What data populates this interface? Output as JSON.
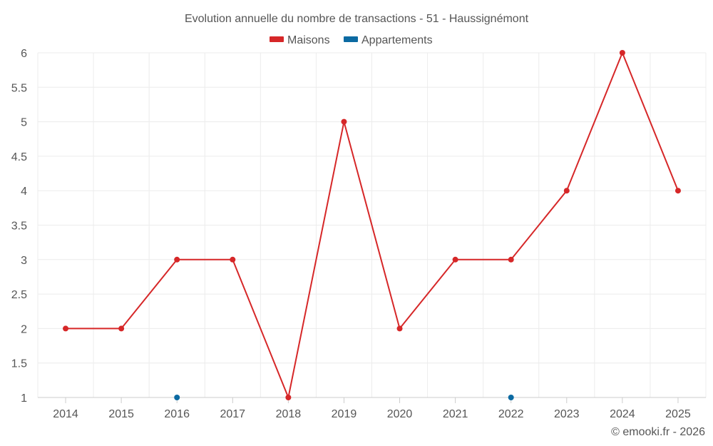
{
  "chart_data": {
    "type": "line",
    "title": "Evolution annuelle du nombre de transactions - 51 - Haussignémont",
    "categories": [
      "2014",
      "2015",
      "2016",
      "2017",
      "2018",
      "2019",
      "2020",
      "2021",
      "2022",
      "2023",
      "2024",
      "2025"
    ],
    "series": [
      {
        "name": "Maisons",
        "color": "#d62728",
        "values": [
          2,
          2,
          3,
          3,
          1,
          5,
          2,
          3,
          3,
          4,
          6,
          4
        ]
      },
      {
        "name": "Appartements",
        "color": "#0b6aa2",
        "values": [
          null,
          null,
          1,
          null,
          null,
          null,
          null,
          null,
          1,
          null,
          null,
          null
        ]
      }
    ],
    "ylim": [
      1,
      6
    ],
    "yticks": [
      "1",
      "1.5",
      "2",
      "2.5",
      "3",
      "3.5",
      "4",
      "4.5",
      "5",
      "5.5",
      "6"
    ],
    "grid": true,
    "legend": "top-center"
  },
  "credit": "© emooki.fr - 2026"
}
